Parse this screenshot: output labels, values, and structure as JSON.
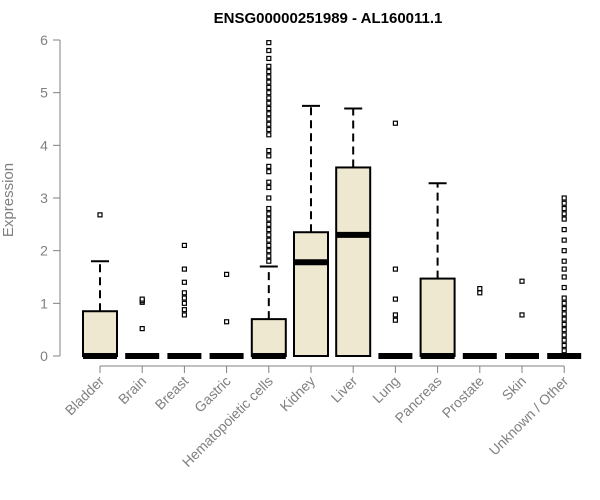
{
  "chart_data": {
    "type": "boxplot",
    "title": "ENSG00000251989 - AL160011.1",
    "xlabel": "",
    "ylabel": "Expression",
    "ylim": [
      0,
      6
    ],
    "yticks": [
      0,
      1,
      2,
      3,
      4,
      5,
      6
    ],
    "categories": [
      "Bladder",
      "Brain",
      "Breast",
      "Gastric",
      "Hematopoietic cells",
      "Kidney",
      "Liver",
      "Lung",
      "Pancreas",
      "Prostate",
      "Skin",
      "Unknown / Other"
    ],
    "box_fill": "#efe8d0",
    "series": [
      {
        "name": "Bladder",
        "q1": 0,
        "median": 0,
        "q3": 0.85,
        "whisker_low": 0,
        "whisker_high": 1.8,
        "outliers": [
          2.68
        ]
      },
      {
        "name": "Brain",
        "q1": 0,
        "median": 0,
        "q3": 0,
        "whisker_low": 0,
        "whisker_high": 0,
        "outliers": [
          0.52,
          1.02,
          1.05,
          1.08
        ]
      },
      {
        "name": "Breast",
        "q1": 0,
        "median": 0,
        "q3": 0,
        "whisker_low": 0,
        "whisker_high": 0,
        "outliers": [
          0.78,
          0.88,
          1.0,
          1.1,
          1.2,
          1.4,
          1.65,
          2.1
        ]
      },
      {
        "name": "Gastric",
        "q1": 0,
        "median": 0,
        "q3": 0,
        "whisker_low": 0,
        "whisker_high": 0,
        "outliers": [
          0.65,
          1.55
        ]
      },
      {
        "name": "Hematopoietic cells",
        "q1": 0,
        "median": 0,
        "q3": 0.7,
        "whisker_low": 0,
        "whisker_high": 1.7,
        "outliers": [
          1.8,
          1.9,
          2.0,
          2.1,
          2.2,
          2.3,
          2.4,
          2.5,
          2.6,
          2.7,
          2.8,
          3.0,
          3.2,
          3.3,
          3.5,
          3.6,
          3.8,
          3.9,
          4.2,
          4.3,
          4.4,
          4.5,
          4.6,
          4.7,
          4.8,
          4.9,
          5.0,
          5.1,
          5.2,
          5.3,
          5.4,
          5.5,
          5.65,
          5.8,
          5.95
        ]
      },
      {
        "name": "Kidney",
        "q1": 0,
        "median": 1.78,
        "q3": 2.35,
        "whisker_low": 0,
        "whisker_high": 4.75,
        "outliers": []
      },
      {
        "name": "Liver",
        "q1": 0,
        "median": 2.3,
        "q3": 3.58,
        "whisker_low": 0,
        "whisker_high": 4.7,
        "outliers": []
      },
      {
        "name": "Lung",
        "q1": 0,
        "median": 0,
        "q3": 0,
        "whisker_low": 0,
        "whisker_high": 0,
        "outliers": [
          0.68,
          0.78,
          1.08,
          1.65,
          4.42
        ]
      },
      {
        "name": "Pancreas",
        "q1": 0,
        "median": 0,
        "q3": 1.47,
        "whisker_low": 0,
        "whisker_high": 3.28,
        "outliers": []
      },
      {
        "name": "Prostate",
        "q1": 0,
        "median": 0,
        "q3": 0,
        "whisker_low": 0,
        "whisker_high": 0,
        "outliers": [
          1.2,
          1.28
        ]
      },
      {
        "name": "Skin",
        "q1": 0,
        "median": 0,
        "q3": 0,
        "whisker_low": 0,
        "whisker_high": 0,
        "outliers": [
          0.78,
          1.42
        ]
      },
      {
        "name": "Unknown / Other",
        "q1": 0,
        "median": 0,
        "q3": 0,
        "whisker_low": 0,
        "whisker_high": 0,
        "outliers": [
          0.1,
          0.2,
          0.3,
          0.4,
          0.5,
          0.6,
          0.7,
          0.8,
          0.9,
          1.0,
          1.1,
          1.3,
          1.5,
          1.65,
          1.8,
          2.0,
          2.2,
          2.4,
          2.6,
          2.7,
          2.8,
          2.9,
          3.0
        ]
      }
    ]
  }
}
